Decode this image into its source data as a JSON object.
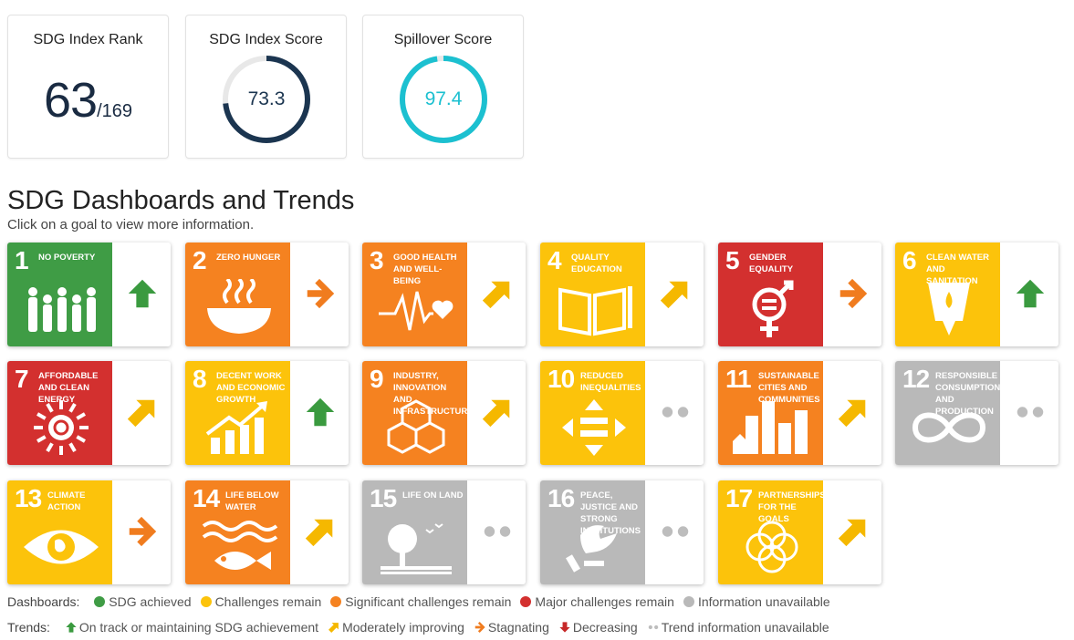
{
  "summary": {
    "rank": {
      "title": "SDG Index Rank",
      "value": "63",
      "total": "/169"
    },
    "index_score": {
      "title": "SDG Index Score",
      "value": "73.3",
      "fraction": 0.733,
      "color": "#1b3550"
    },
    "spillover": {
      "title": "Spillover Score",
      "value": "97.4",
      "fraction": 0.974,
      "color": "#1cc0d0"
    }
  },
  "section": {
    "title": "SDG Dashboards and Trends",
    "subtitle": "Click on a goal to view more information."
  },
  "colors": {
    "green": "#3f9c45",
    "yellow": "#fcc30b",
    "orange": "#f58220",
    "red": "#d3302f",
    "grey": "#b9b9b9",
    "trend_green": "#3a9a3f",
    "trend_yellow": "#f5b800",
    "trend_orange": "#f07c1f"
  },
  "goals": [
    {
      "number": "1",
      "title": "No poverty",
      "status": "green",
      "trend": "up",
      "icon": "family-icon"
    },
    {
      "number": "2",
      "title": "Zero hunger",
      "status": "orange",
      "trend": "right",
      "icon": "bowl-icon"
    },
    {
      "number": "3",
      "title": "Good health and well-being",
      "status": "orange",
      "trend": "diag",
      "icon": "heartbeat-icon"
    },
    {
      "number": "4",
      "title": "Quality education",
      "status": "yellow",
      "trend": "diag",
      "icon": "book-icon"
    },
    {
      "number": "5",
      "title": "Gender equality",
      "status": "red",
      "trend": "right",
      "icon": "gender-icon"
    },
    {
      "number": "6",
      "title": "Clean water and sanitation",
      "status": "yellow",
      "trend": "up",
      "icon": "water-icon"
    },
    {
      "number": "7",
      "title": "Affordable and clean energy",
      "status": "red",
      "trend": "diag",
      "icon": "sun-power-icon"
    },
    {
      "number": "8",
      "title": "Decent work and economic growth",
      "status": "yellow",
      "trend": "up",
      "icon": "growth-chart-icon"
    },
    {
      "number": "9",
      "title": "Industry, innovation and infrastructure",
      "status": "orange",
      "trend": "diag",
      "icon": "cubes-icon"
    },
    {
      "number": "10",
      "title": "Reduced inequalities",
      "status": "yellow",
      "trend": "dots",
      "icon": "equal-arrows-icon"
    },
    {
      "number": "11",
      "title": "Sustainable cities and communities",
      "status": "orange",
      "trend": "diag",
      "icon": "city-icon"
    },
    {
      "number": "12",
      "title": "Responsible consumption and production",
      "status": "grey",
      "trend": "dots",
      "icon": "infinity-icon"
    },
    {
      "number": "13",
      "title": "Climate action",
      "status": "yellow",
      "trend": "right",
      "icon": "eye-globe-icon"
    },
    {
      "number": "14",
      "title": "Life below water",
      "status": "orange",
      "trend": "diag",
      "icon": "fish-icon"
    },
    {
      "number": "15",
      "title": "Life on land",
      "status": "grey",
      "trend": "dots",
      "icon": "tree-icon"
    },
    {
      "number": "16",
      "title": "Peace, justice and strong institutions",
      "status": "grey",
      "trend": "dots",
      "icon": "dove-icon"
    },
    {
      "number": "17",
      "title": "Partnerships for the goals",
      "status": "yellow",
      "trend": "diag",
      "icon": "rings-icon"
    }
  ],
  "legend": {
    "dashboards_label": "Dashboards:",
    "dashboards": [
      {
        "color": "#3f9c45",
        "label": "SDG achieved"
      },
      {
        "color": "#fcc30b",
        "label": "Challenges remain"
      },
      {
        "color": "#f58220",
        "label": "Significant challenges remain"
      },
      {
        "color": "#d3302f",
        "label": "Major challenges remain"
      },
      {
        "color": "#b9b9b9",
        "label": "Information unavailable"
      }
    ],
    "trends_label": "Trends:",
    "trends": [
      {
        "icon": "up",
        "label": "On track or maintaining SDG achievement"
      },
      {
        "icon": "diag",
        "label": "Moderately improving"
      },
      {
        "icon": "right",
        "label": "Stagnating"
      },
      {
        "icon": "down",
        "label": "Decreasing"
      },
      {
        "icon": "dots",
        "label": "Trend information unavailable"
      }
    ]
  }
}
